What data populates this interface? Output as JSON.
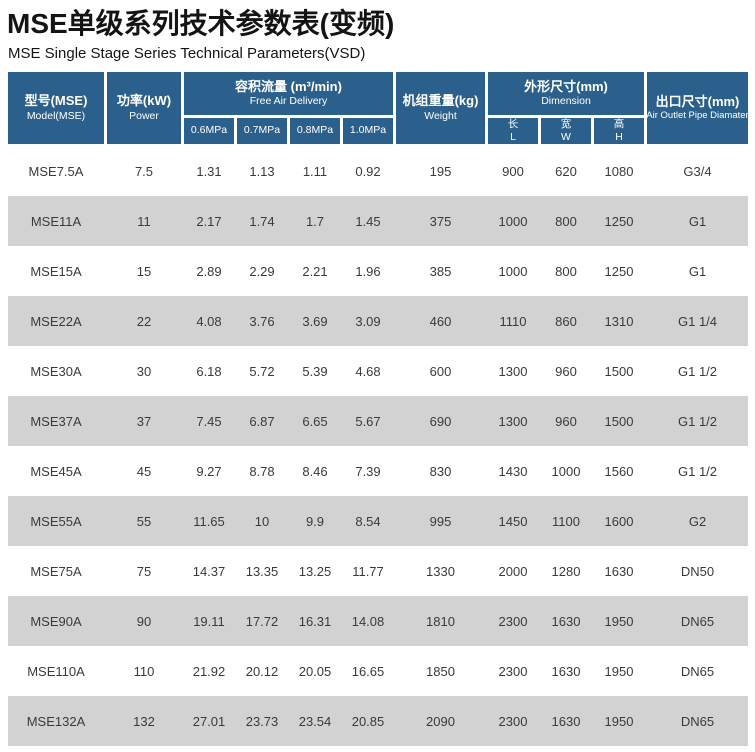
{
  "title": "MSE单级系列技术参数表(变频)",
  "subtitle": "MSE Single Stage Series Technical Parameters(VSD)",
  "colors": {
    "header_bg": "#2c608c",
    "row_alt_bg": "#d2d2d2",
    "header_text": "#ffffff",
    "body_text": "#3a3a3a"
  },
  "table": {
    "headers": {
      "model_cn": "型号(MSE)",
      "model_en": "Model(MSE)",
      "power_cn": "功率(kW)",
      "power_en": "Power",
      "fad_cn": "容积流量 (m³/min)",
      "fad_en": "Free Air Delivery",
      "fad_subs": [
        "0.6MPa",
        "0.7MPa",
        "0.8MPa",
        "1.0MPa"
      ],
      "weight_cn": "机组重量(kg)",
      "weight_en": "Weight",
      "dim_cn": "外形尺寸(mm)",
      "dim_en": "Dimension",
      "dim_subs": [
        {
          "cn": "长",
          "en": "L"
        },
        {
          "cn": "宽",
          "en": "W"
        },
        {
          "cn": "高",
          "en": "H"
        }
      ],
      "outlet_cn": "出口尺寸(mm)",
      "outlet_en": "Air Outlet Pipe Diamater"
    },
    "rows": [
      [
        "MSE7.5A",
        "7.5",
        "1.31",
        "1.13",
        "1.11",
        "0.92",
        "195",
        "900",
        "620",
        "1080",
        "G3/4"
      ],
      [
        "MSE11A",
        "11",
        "2.17",
        "1.74",
        "1.7",
        "1.45",
        "375",
        "1000",
        "800",
        "1250",
        "G1"
      ],
      [
        "MSE15A",
        "15",
        "2.89",
        "2.29",
        "2.21",
        "1.96",
        "385",
        "1000",
        "800",
        "1250",
        "G1"
      ],
      [
        "MSE22A",
        "22",
        "4.08",
        "3.76",
        "3.69",
        "3.09",
        "460",
        "1110",
        "860",
        "1310",
        "G1 1/4"
      ],
      [
        "MSE30A",
        "30",
        "6.18",
        "5.72",
        "5.39",
        "4.68",
        "600",
        "1300",
        "960",
        "1500",
        "G1 1/2"
      ],
      [
        "MSE37A",
        "37",
        "7.45",
        "6.87",
        "6.65",
        "5.67",
        "690",
        "1300",
        "960",
        "1500",
        "G1 1/2"
      ],
      [
        "MSE45A",
        "45",
        "9.27",
        "8.78",
        "8.46",
        "7.39",
        "830",
        "1430",
        "1000",
        "1560",
        "G1 1/2"
      ],
      [
        "MSE55A",
        "55",
        "11.65",
        "10",
        "9.9",
        "8.54",
        "995",
        "1450",
        "1100",
        "1600",
        "G2"
      ],
      [
        "MSE75A",
        "75",
        "14.37",
        "13.35",
        "13.25",
        "11.77",
        "1330",
        "2000",
        "1280",
        "1630",
        "DN50"
      ],
      [
        "MSE90A",
        "90",
        "19.11",
        "17.72",
        "16.31",
        "14.08",
        "1810",
        "2300",
        "1630",
        "1950",
        "DN65"
      ],
      [
        "MSE110A",
        "110",
        "21.92",
        "20.12",
        "20.05",
        "16.65",
        "1850",
        "2300",
        "1630",
        "1950",
        "DN65"
      ],
      [
        "MSE132A",
        "132",
        "27.01",
        "23.73",
        "23.54",
        "20.85",
        "2090",
        "2300",
        "1630",
        "1950",
        "DN65"
      ]
    ]
  }
}
